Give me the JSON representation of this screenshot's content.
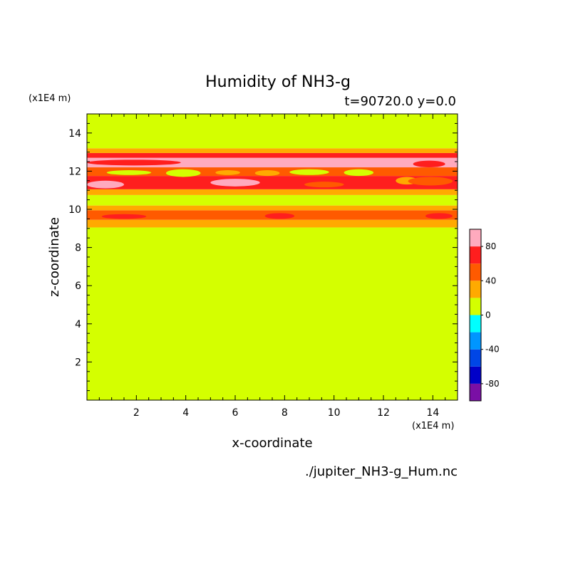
{
  "chart_data": {
    "type": "heatmap",
    "title": "Humidity of NH3-g",
    "subtitle": "t=90720.0 y=0.0",
    "xlabel": "x-coordinate",
    "ylabel": "z-coordinate",
    "x_unit": "(x1E4 m)",
    "y_unit": "(x1E4 m)",
    "xlim": [
      0,
      15
    ],
    "ylim": [
      0,
      15
    ],
    "x_ticks": [
      "2",
      "4",
      "6",
      "8",
      "10",
      "12",
      "14"
    ],
    "y_ticks": [
      "2",
      "4",
      "6",
      "8",
      "10",
      "12",
      "14"
    ],
    "source_file": "./jupiter_NH3-g_Hum.nc",
    "colorbar": {
      "levels": [
        -100,
        -80,
        -60,
        -40,
        -20,
        0,
        20,
        40,
        60,
        80,
        100
      ],
      "colors": [
        "#7a0fa5",
        "#0000c8",
        "#0046e6",
        "#0096ff",
        "#00ffff",
        "#d4ff00",
        "#ffaa00",
        "#ff5a00",
        "#ff1e1e",
        "#ffaabe"
      ],
      "tick_labels": [
        "-80",
        "-40",
        "0",
        "40",
        "80"
      ]
    },
    "bands": [
      {
        "z_range": [
          0.0,
          9.05
        ],
        "value": 10
      },
      {
        "z_range": [
          9.05,
          9.45
        ],
        "value": 30
      },
      {
        "z_range": [
          9.45,
          9.95
        ],
        "value": 50
      },
      {
        "z_range": [
          9.95,
          10.2
        ],
        "value": 30
      },
      {
        "z_range": [
          10.2,
          10.75
        ],
        "value": 10
      },
      {
        "z_range": [
          10.75,
          11.05
        ],
        "value": 30
      },
      {
        "z_range": [
          11.05,
          11.75
        ],
        "value": 70
      },
      {
        "z_range": [
          11.75,
          12.2
        ],
        "value": 50
      },
      {
        "z_range": [
          12.2,
          12.7
        ],
        "value": 90
      },
      {
        "z_range": [
          12.7,
          12.95
        ],
        "value": 70
      },
      {
        "z_range": [
          12.95,
          13.2
        ],
        "value": 30
      },
      {
        "z_range": [
          13.2,
          15.0
        ],
        "value": 10
      }
    ],
    "patches": [
      {
        "x": [
          0.8,
          2.6
        ],
        "z": [
          11.8,
          12.05
        ],
        "value": 10
      },
      {
        "x": [
          3.2,
          4.6
        ],
        "z": [
          11.7,
          12.1
        ],
        "value": 10
      },
      {
        "x": [
          5.2,
          6.2
        ],
        "z": [
          11.8,
          12.05
        ],
        "value": 30
      },
      {
        "x": [
          6.8,
          7.8
        ],
        "z": [
          11.75,
          12.05
        ],
        "value": 30
      },
      {
        "x": [
          8.2,
          9.8
        ],
        "z": [
          11.8,
          12.1
        ],
        "value": 10
      },
      {
        "x": [
          10.4,
          11.6
        ],
        "z": [
          11.75,
          12.1
        ],
        "value": 10
      },
      {
        "x": [
          5.0,
          7.0
        ],
        "z": [
          11.2,
          11.6
        ],
        "value": 90
      },
      {
        "x": [
          8.8,
          10.4
        ],
        "z": [
          11.15,
          11.45
        ],
        "value": 50
      },
      {
        "x": [
          12.5,
          13.4
        ],
        "z": [
          11.3,
          11.7
        ],
        "value": 30
      },
      {
        "x": [
          0.0,
          1.5
        ],
        "z": [
          11.1,
          11.5
        ],
        "value": 90
      },
      {
        "x": [
          13.0,
          14.8
        ],
        "z": [
          11.25,
          11.7
        ],
        "value": 50
      },
      {
        "x": [
          0.0,
          3.8
        ],
        "z": [
          12.3,
          12.6
        ],
        "value": 70
      },
      {
        "x": [
          13.2,
          14.5
        ],
        "z": [
          12.2,
          12.55
        ],
        "value": 70
      },
      {
        "x": [
          13.7,
          14.8
        ],
        "z": [
          9.5,
          9.8
        ],
        "value": 70
      },
      {
        "x": [
          0.6,
          2.4
        ],
        "z": [
          9.5,
          9.75
        ],
        "value": 70
      },
      {
        "x": [
          7.2,
          8.4
        ],
        "z": [
          9.5,
          9.8
        ],
        "value": 70
      }
    ]
  }
}
